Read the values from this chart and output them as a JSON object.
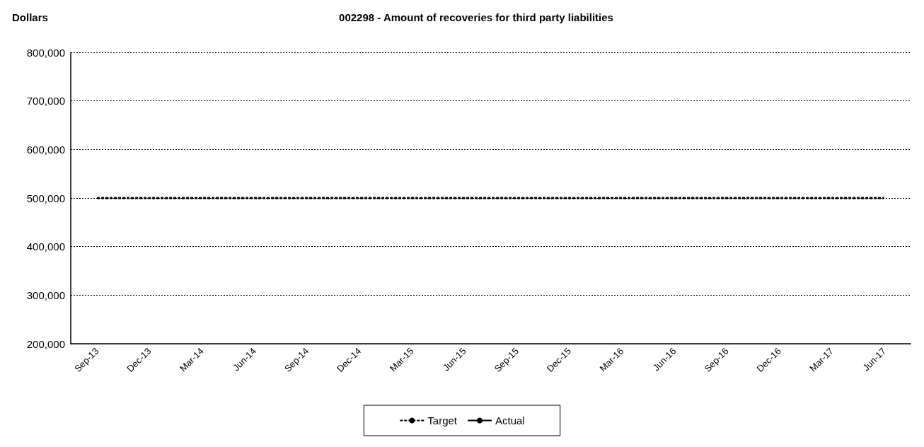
{
  "chart_data": {
    "type": "line",
    "title": "002298 - Amount of recoveries for third party liabilities",
    "ylabel": "Dollars",
    "categories": [
      "Sep-13",
      "Dec-13",
      "Mar-14",
      "Jun-14",
      "Sep-14",
      "Dec-14",
      "Mar-15",
      "Jun-15",
      "Sep-15",
      "Dec-15",
      "Mar-16",
      "Jun-16",
      "Sep-16",
      "Dec-16",
      "Mar-17",
      "Jun-17"
    ],
    "series": [
      {
        "name": "Target",
        "color": "#000000",
        "line_style": "dashed",
        "values": [
          500000,
          500000,
          500000,
          500000,
          500000,
          500000,
          500000,
          500000,
          500000,
          500000,
          500000,
          500000,
          500000,
          500000,
          500000,
          500000
        ]
      },
      {
        "name": "Actual",
        "color": "#000000",
        "line_style": "solid",
        "values": [
          null,
          null,
          null,
          null,
          null,
          null,
          null,
          null,
          null,
          null,
          null,
          null,
          null,
          null,
          null,
          null
        ]
      }
    ],
    "ylim": [
      200000,
      800000
    ],
    "yticks": [
      {
        "value": 200000,
        "label": "200,000"
      },
      {
        "value": 300000,
        "label": "300,000"
      },
      {
        "value": 400000,
        "label": "400,000"
      },
      {
        "value": 500000,
        "label": "500,000"
      },
      {
        "value": 600000,
        "label": "600,000"
      },
      {
        "value": 700000,
        "label": "700,000"
      },
      {
        "value": 800000,
        "label": "800,000"
      }
    ],
    "grid": "y",
    "legend": "bottom",
    "marker": "none"
  }
}
